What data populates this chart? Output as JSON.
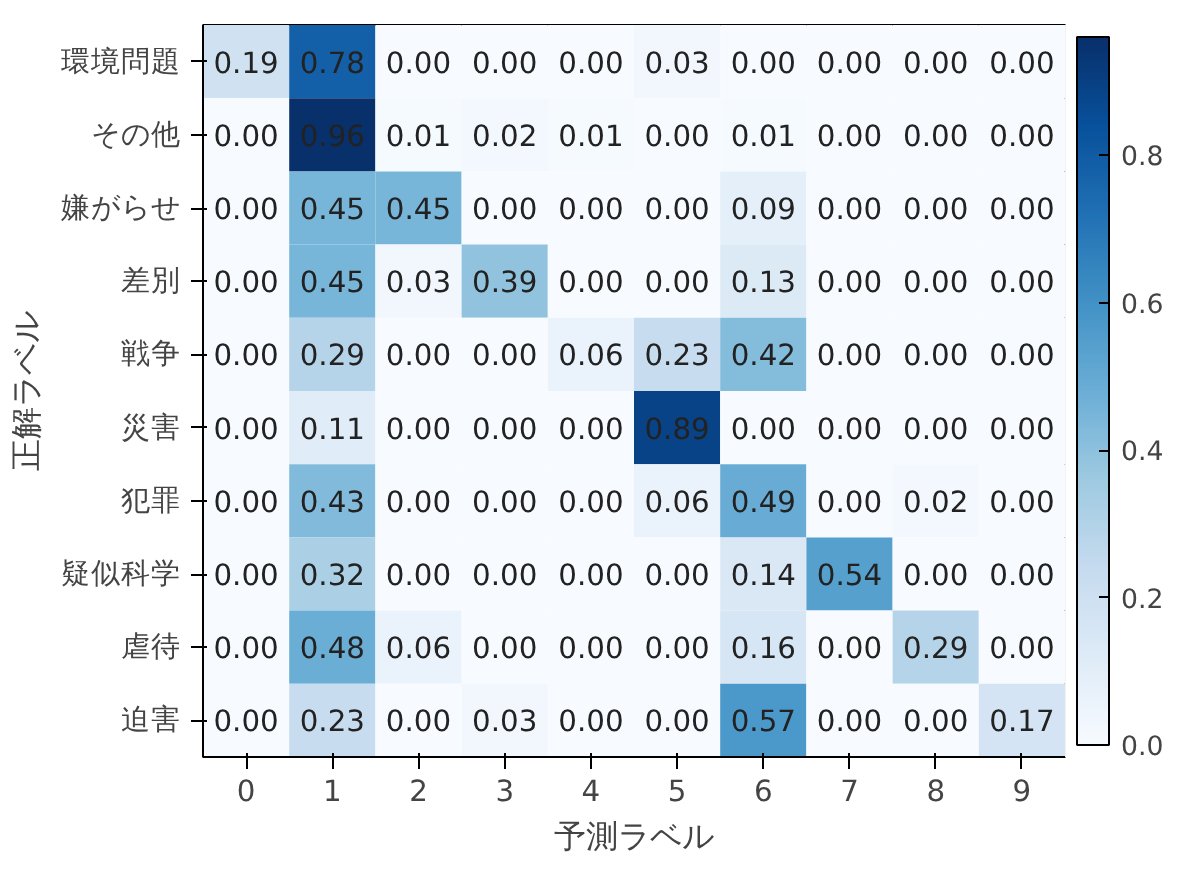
{
  "chart_data": {
    "type": "heatmap",
    "xlabel": "予測ラベル",
    "ylabel": "正解ラベル",
    "categories": [
      "0",
      "1",
      "2",
      "3",
      "4",
      "5",
      "6",
      "7",
      "8",
      "9"
    ],
    "y_categories": [
      "環境問題",
      "その他",
      "嫌がらせ",
      "差別",
      "戦争",
      "災害",
      "犯罪",
      "疑似科学",
      "虐待",
      "迫害"
    ],
    "cells": [
      [
        0.19,
        0.78,
        0.0,
        0.0,
        0.0,
        0.03,
        0.0,
        0.0,
        0.0,
        0.0
      ],
      [
        0.0,
        0.96,
        0.01,
        0.02,
        0.01,
        0.0,
        0.01,
        0.0,
        0.0,
        0.0
      ],
      [
        0.0,
        0.45,
        0.45,
        0.0,
        0.0,
        0.0,
        0.09,
        0.0,
        0.0,
        0.0
      ],
      [
        0.0,
        0.45,
        0.03,
        0.39,
        0.0,
        0.0,
        0.13,
        0.0,
        0.0,
        0.0
      ],
      [
        0.0,
        0.29,
        0.0,
        0.0,
        0.06,
        0.23,
        0.42,
        0.0,
        0.0,
        0.0
      ],
      [
        0.0,
        0.11,
        0.0,
        0.0,
        0.0,
        0.89,
        0.0,
        0.0,
        0.0,
        0.0
      ],
      [
        0.0,
        0.43,
        0.0,
        0.0,
        0.0,
        0.06,
        0.49,
        0.0,
        0.02,
        0.0
      ],
      [
        0.0,
        0.32,
        0.0,
        0.0,
        0.0,
        0.0,
        0.14,
        0.54,
        0.0,
        0.0
      ],
      [
        0.0,
        0.48,
        0.06,
        0.0,
        0.0,
        0.0,
        0.16,
        0.0,
        0.29,
        0.0
      ],
      [
        0.0,
        0.23,
        0.0,
        0.03,
        0.0,
        0.0,
        0.57,
        0.0,
        0.0,
        0.17
      ]
    ],
    "cell_labels": [
      [
        "0.19",
        "0.78",
        "0.00",
        "0.00",
        "0.00",
        "0.03",
        "0.00",
        "0.00",
        "0.00",
        "0.00"
      ],
      [
        "0.00",
        "0.96",
        "0.01",
        "0.02",
        "0.01",
        "0.00",
        "0.01",
        "0.00",
        "0.00",
        "0.00"
      ],
      [
        "0.00",
        "0.45",
        "0.45",
        "0.00",
        "0.00",
        "0.00",
        "0.09",
        "0.00",
        "0.00",
        "0.00"
      ],
      [
        "0.00",
        "0.45",
        "0.03",
        "0.39",
        "0.00",
        "0.00",
        "0.13",
        "0.00",
        "0.00",
        "0.00"
      ],
      [
        "0.00",
        "0.29",
        "0.00",
        "0.00",
        "0.06",
        "0.23",
        "0.42",
        "0.00",
        "0.00",
        "0.00"
      ],
      [
        "0.00",
        "0.11",
        "0.00",
        "0.00",
        "0.00",
        "0.89",
        "0.00",
        "0.00",
        "0.00",
        "0.00"
      ],
      [
        "0.00",
        "0.43",
        "0.00",
        "0.00",
        "0.00",
        "0.06",
        "0.49",
        "0.00",
        "0.02",
        "0.00"
      ],
      [
        "0.00",
        "0.32",
        "0.00",
        "0.00",
        "0.00",
        "0.00",
        "0.14",
        "0.54",
        "0.00",
        "0.00"
      ],
      [
        "0.00",
        "0.48",
        "0.06",
        "0.00",
        "0.00",
        "0.00",
        "0.16",
        "0.00",
        "0.29",
        "0.00"
      ],
      [
        "0.00",
        "0.23",
        "0.00",
        "0.03",
        "0.00",
        "0.00",
        "0.57",
        "0.00",
        "0.00",
        "0.17"
      ]
    ],
    "clim": [
      0,
      0.96
    ],
    "cticks": [
      {
        "value": 0,
        "label": "0.0"
      },
      0.2,
      0.4,
      0.6,
      0.8
    ]
  }
}
